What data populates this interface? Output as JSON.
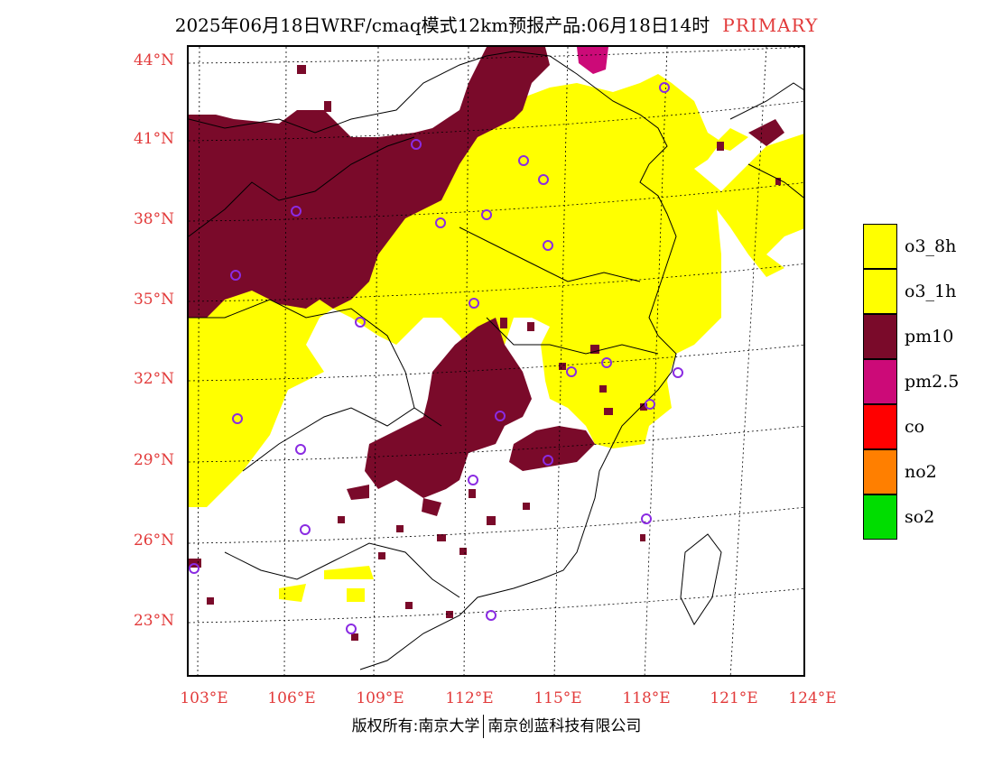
{
  "title": {
    "main": "2025年06月18日WRF/cmaq模式12km预报产品:06月18日14时",
    "tag": "PRIMARY"
  },
  "axes": {
    "lat_labels": [
      "44°N",
      "41°N",
      "38°N",
      "35°N",
      "32°N",
      "29°N",
      "26°N",
      "23°N"
    ],
    "lon_labels": [
      "103°E",
      "106°E",
      "109°E",
      "112°E",
      "115°E",
      "118°E",
      "121°E",
      "124°E"
    ]
  },
  "legend": [
    {
      "label": "o3_8h",
      "color": "#ffff00"
    },
    {
      "label": "o3_1h",
      "color": "#ffff00"
    },
    {
      "label": "pm10",
      "color": "#7a0a2a"
    },
    {
      "label": "pm2.5",
      "color": "#cc0a78"
    },
    {
      "label": "co",
      "color": "#ff0000"
    },
    {
      "label": "no2",
      "color": "#ff7f00"
    },
    {
      "label": "so2",
      "color": "#00dd00"
    }
  ],
  "footer": {
    "left": "版权所有:南京大学",
    "right": "南京创蓝科技有限公司"
  },
  "colors": {
    "o3": "#ffff00",
    "pm10": "#7a0a2a",
    "pm25": "#cc0a78",
    "station": "#8a2be2",
    "label": "#e23a3a"
  }
}
